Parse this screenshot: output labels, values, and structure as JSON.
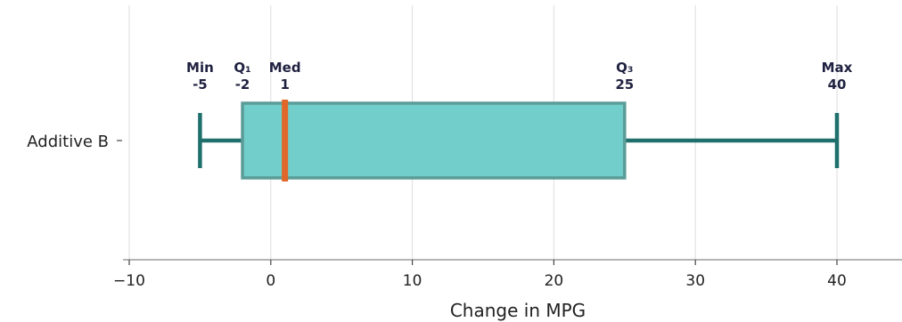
{
  "chart_data": {
    "type": "box",
    "orientation": "horizontal",
    "xlabel": "Change in MPG",
    "xlim": [
      -10.5,
      44.5
    ],
    "xticks": [
      -10,
      0,
      10,
      20,
      30,
      40
    ],
    "xtick_labels": [
      "−10",
      "0",
      "10",
      "20",
      "30",
      "40"
    ],
    "grid": "vertical",
    "series": [
      {
        "category": "Additive B",
        "min": -5,
        "q1": -2,
        "median": 1,
        "q3": 25,
        "max": 40
      }
    ],
    "annotations": [
      {
        "key": "min",
        "label": "Min",
        "value_text": "-5",
        "value": -5
      },
      {
        "key": "q1",
        "label": "Q₁",
        "value_text": "-2",
        "value": -2
      },
      {
        "key": "median",
        "label": "Med",
        "value_text": "1",
        "value": 1
      },
      {
        "key": "q3",
        "label": "Q₃",
        "value_text": "25",
        "value": 25
      },
      {
        "key": "max",
        "label": "Max",
        "value_text": "40",
        "value": 40
      }
    ],
    "colors": {
      "box_fill": "#72ceca",
      "box_edge": "#5b9c98",
      "whisker": "#1f6f6c",
      "median": "#e0662a",
      "grid": "#dddddd",
      "axis": "#888888"
    }
  }
}
